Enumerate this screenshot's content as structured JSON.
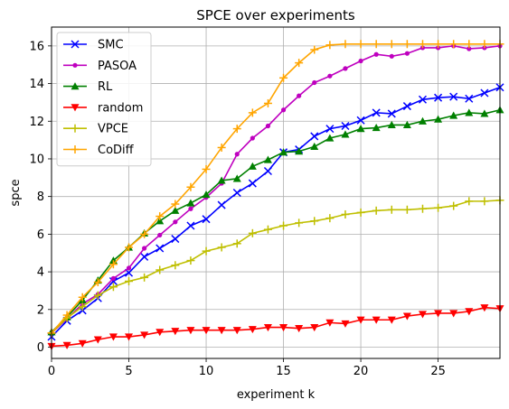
{
  "chart_data": {
    "type": "line",
    "title": "SPCE over experiments",
    "xlabel": "experiment k",
    "ylabel": "spce",
    "xlim": [
      0,
      29
    ],
    "ylim": [
      -0.6,
      17.0
    ],
    "xticks": [
      0,
      5,
      10,
      15,
      20,
      25
    ],
    "yticks": [
      0,
      2,
      4,
      6,
      8,
      10,
      12,
      14,
      16
    ],
    "grid": true,
    "legend_position": "top-left",
    "x": [
      0,
      1,
      2,
      3,
      4,
      5,
      6,
      7,
      8,
      9,
      10,
      11,
      12,
      13,
      14,
      15,
      16,
      17,
      18,
      19,
      20,
      21,
      22,
      23,
      24,
      25,
      26,
      27,
      28,
      29
    ],
    "series": [
      {
        "name": "SMC",
        "color": "#0000ff",
        "marker": "x",
        "values": [
          0.55,
          1.4,
          1.95,
          2.6,
          3.5,
          3.95,
          4.8,
          5.25,
          5.75,
          6.45,
          6.8,
          7.55,
          8.2,
          8.7,
          9.35,
          10.35,
          10.5,
          11.2,
          11.6,
          11.75,
          12.05,
          12.45,
          12.4,
          12.8,
          13.15,
          13.25,
          13.3,
          13.2,
          13.5,
          13.8
        ]
      },
      {
        "name": "PASOA",
        "color": "#bf00bf",
        "marker": "dot",
        "values": [
          0.75,
          1.5,
          2.3,
          2.8,
          3.65,
          4.2,
          5.25,
          5.95,
          6.65,
          7.35,
          7.95,
          8.7,
          10.25,
          11.1,
          11.75,
          12.6,
          13.35,
          14.05,
          14.4,
          14.8,
          15.2,
          15.55,
          15.45,
          15.6,
          15.9,
          15.9,
          16.0,
          15.85,
          15.9,
          16.0
        ]
      },
      {
        "name": "RL",
        "color": "#008000",
        "marker": "triangle-up",
        "values": [
          0.8,
          1.6,
          2.5,
          3.55,
          4.6,
          5.3,
          6.05,
          6.7,
          7.25,
          7.65,
          8.1,
          8.85,
          8.95,
          9.6,
          9.95,
          10.35,
          10.4,
          10.65,
          11.1,
          11.3,
          11.6,
          11.65,
          11.8,
          11.8,
          12.0,
          12.1,
          12.3,
          12.45,
          12.4,
          12.6
        ]
      },
      {
        "name": "random",
        "color": "#ff0000",
        "marker": "triangle-down",
        "values": [
          0.05,
          0.1,
          0.2,
          0.4,
          0.55,
          0.55,
          0.65,
          0.8,
          0.85,
          0.9,
          0.9,
          0.9,
          0.9,
          0.95,
          1.05,
          1.05,
          1.0,
          1.05,
          1.3,
          1.25,
          1.45,
          1.45,
          1.45,
          1.65,
          1.75,
          1.8,
          1.8,
          1.9,
          2.1,
          2.05
        ]
      },
      {
        "name": "VPCE",
        "color": "#bfbf00",
        "marker": "plus",
        "values": [
          0.75,
          1.55,
          2.15,
          2.75,
          3.2,
          3.5,
          3.7,
          4.1,
          4.35,
          4.6,
          5.1,
          5.3,
          5.5,
          6.05,
          6.25,
          6.45,
          6.6,
          6.7,
          6.85,
          7.05,
          7.15,
          7.25,
          7.3,
          7.3,
          7.35,
          7.4,
          7.5,
          7.75,
          7.75,
          7.8
        ]
      },
      {
        "name": "CoDiff",
        "color": "#ffa500",
        "marker": "plus",
        "values": [
          0.75,
          1.7,
          2.65,
          3.45,
          4.4,
          5.3,
          6.0,
          6.95,
          7.6,
          8.5,
          9.45,
          10.6,
          11.6,
          12.45,
          12.95,
          14.3,
          15.1,
          15.8,
          16.05,
          16.1,
          16.1,
          16.1,
          16.1,
          16.1,
          16.1,
          16.1,
          16.1,
          16.1,
          16.1,
          16.1
        ]
      }
    ]
  }
}
